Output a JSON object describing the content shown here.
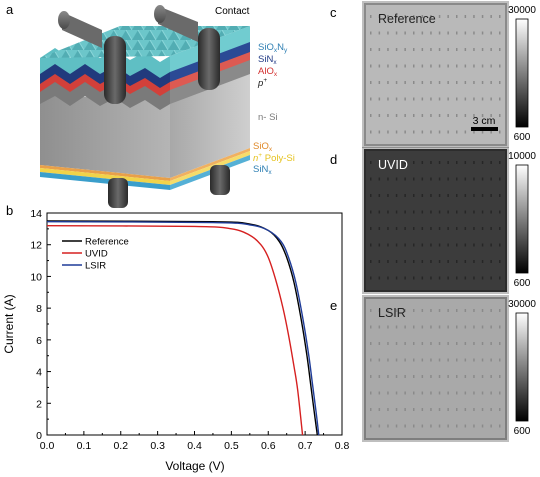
{
  "panels": {
    "a": "a",
    "b": "b",
    "c": "c",
    "d": "d",
    "e": "e"
  },
  "schematic": {
    "contact_label": "Contact",
    "layers_top": [
      {
        "base": "SiO",
        "sub": "x",
        "tail": "N",
        "sub2": "y",
        "color": "#2e7fb3"
      },
      {
        "base": "SiN",
        "sub": "x",
        "tail": "",
        "sub2": "",
        "color": "#233b86"
      },
      {
        "base": "AlO",
        "sub": "x",
        "tail": "",
        "sub2": "",
        "color": "#d3302f"
      },
      {
        "base": "p",
        "sup": "+",
        "color": "#222222"
      }
    ],
    "bulk_label": "n- Si",
    "layers_bottom": [
      {
        "base": "SiO",
        "sub": "x",
        "color": "#e08a2a"
      },
      {
        "base": "n",
        "sup": "+",
        "tail": " Poly-Si",
        "color": "#e6c31f"
      },
      {
        "base": "SiN",
        "sub": "x",
        "color": "#2e7fb3"
      }
    ],
    "colors": {
      "teal": "#5fbfc4",
      "navy": "#213a7d",
      "red": "#d2403a",
      "gray": "#9c9c9c",
      "orange": "#e8a04a",
      "yellow": "#f1d34a",
      "blue": "#3a9ecb"
    }
  },
  "chart_data": {
    "type": "line",
    "xlabel": "Voltage (V)",
    "ylabel": "Current (A)",
    "xlim": [
      0.0,
      0.8
    ],
    "ylim": [
      0,
      14
    ],
    "x_ticks": [
      "0.0",
      "0.1",
      "0.2",
      "0.3",
      "0.4",
      "0.5",
      "0.6",
      "0.7",
      "0.8"
    ],
    "y_ticks": [
      "0",
      "2",
      "4",
      "6",
      "8",
      "10",
      "12",
      "14"
    ],
    "legend_position": "top-left",
    "series": [
      {
        "name": "Reference",
        "color": "#000000",
        "isc": 13.5,
        "voc": 0.733,
        "points": [
          [
            0,
            13.5
          ],
          [
            0.45,
            13.45
          ],
          [
            0.55,
            13.3
          ],
          [
            0.6,
            12.9
          ],
          [
            0.63,
            12.2
          ],
          [
            0.65,
            11.2
          ],
          [
            0.67,
            9.6
          ],
          [
            0.69,
            7.2
          ],
          [
            0.705,
            5.0
          ],
          [
            0.715,
            3.2
          ],
          [
            0.725,
            1.4
          ],
          [
            0.733,
            0
          ]
        ]
      },
      {
        "name": "UVID",
        "color": "#d62020",
        "isc": 13.2,
        "voc": 0.693,
        "points": [
          [
            0,
            13.2
          ],
          [
            0.4,
            13.15
          ],
          [
            0.5,
            13.0
          ],
          [
            0.55,
            12.6
          ],
          [
            0.58,
            12.0
          ],
          [
            0.6,
            11.2
          ],
          [
            0.62,
            9.8
          ],
          [
            0.64,
            8.0
          ],
          [
            0.655,
            6.3
          ],
          [
            0.67,
            4.3
          ],
          [
            0.68,
            2.8
          ],
          [
            0.693,
            0
          ]
        ]
      },
      {
        "name": "LSIR",
        "color": "#1f3c99",
        "isc": 13.45,
        "voc": 0.737,
        "points": [
          [
            0,
            13.45
          ],
          [
            0.45,
            13.4
          ],
          [
            0.55,
            13.25
          ],
          [
            0.6,
            12.9
          ],
          [
            0.635,
            12.2
          ],
          [
            0.655,
            11.2
          ],
          [
            0.675,
            9.6
          ],
          [
            0.695,
            7.2
          ],
          [
            0.71,
            5.0
          ],
          [
            0.72,
            3.2
          ],
          [
            0.73,
            1.4
          ],
          [
            0.737,
            0
          ]
        ]
      }
    ]
  },
  "el_images": [
    {
      "panel": "c",
      "label": "Reference",
      "cbar_max": "30000",
      "cbar_min": "600",
      "scalebar": "3 cm",
      "tone": "#b9b9b9"
    },
    {
      "panel": "d",
      "label": "UVID",
      "cbar_max": "10000",
      "cbar_min": "600",
      "scalebar": "",
      "tone": "#3c3c3c"
    },
    {
      "panel": "e",
      "label": "LSIR",
      "cbar_max": "30000",
      "cbar_min": "600",
      "scalebar": "",
      "tone": "#a9a9a9"
    }
  ]
}
